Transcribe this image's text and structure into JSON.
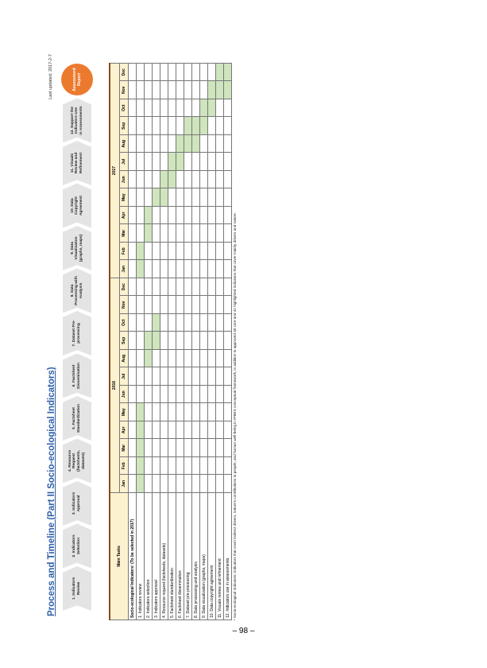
{
  "header": {
    "title": "Process and Timeline (Part II Socio-ecological Indicators)",
    "last_updated": "Last updated: 2017-2-7"
  },
  "steps": [
    "1. Indicators Review",
    "2. Indicators Selection",
    "3. Indicators Approval",
    "4. Resource Request (factsheets, datasets)",
    "5. Factsheet Standardization",
    "6. Factsheet Dissemination",
    "7. Dataset Pre-processing",
    "8. Data Processing with Analysis",
    "9. Data Visualization (graphs, maps)",
    "10. Data Copyright Agreement",
    "11. Visuals Review and Refinement",
    "12. Support the Indicators Use in Assessments"
  ],
  "report": "Assessment Report",
  "table": {
    "main_tasks": "Main Tasks",
    "years": [
      "2016",
      "2017"
    ],
    "months": [
      "Jan",
      "Feb",
      "Mar",
      "Apr",
      "May",
      "Jun",
      "Jul",
      "Aug",
      "Sep",
      "Oct",
      "Nov",
      "Dec"
    ],
    "group": "Socio-ecological Indicators¹ (To be selected in 2017)",
    "rows": [
      {
        "label": "1. Indicators review",
        "shaded": [
          0,
          1,
          2,
          3,
          4,
          12,
          13
        ]
      },
      {
        "label": "2. Indicators selection",
        "shaded": [
          7,
          8,
          14,
          15
        ]
      },
      {
        "label": "3. Indicators approval",
        "shaded": [
          8,
          9,
          16
        ]
      },
      {
        "label": "4. Resource request (factsheets, datasets)",
        "shaded": [
          16,
          17
        ]
      },
      {
        "label": "5. Factsheet standardization",
        "shaded": [
          17,
          18
        ]
      },
      {
        "label": "6. Factsheet dissemination",
        "shaded": [
          18,
          19
        ]
      },
      {
        "label": "7. Dataset pre-processing",
        "shaded": [
          19,
          20
        ]
      },
      {
        "label": "8. Data processing and analysis",
        "shaded": [
          19,
          20
        ]
      },
      {
        "label": "9. Data visualization (graphs, maps)",
        "shaded": [
          20,
          21
        ]
      },
      {
        "label": "10. Data copyright agreement",
        "shaded": [
          21,
          22
        ]
      },
      {
        "label": "11. Visuals review and refinement",
        "shaded": [
          22,
          23
        ]
      },
      {
        "label": "12. Indicators use in assessments",
        "shaded": [
          22,
          23
        ]
      }
    ]
  },
  "footnote": "¹ Socio-ecological Indicators: indicators that cover indirect drivers, nature's contributions to people, and human well-being in IPBES conceptual framework, in addition to approved 30 core and 42 highlighted indicators that cover mainly drivers and nature.",
  "page_number": "– 98 –"
}
